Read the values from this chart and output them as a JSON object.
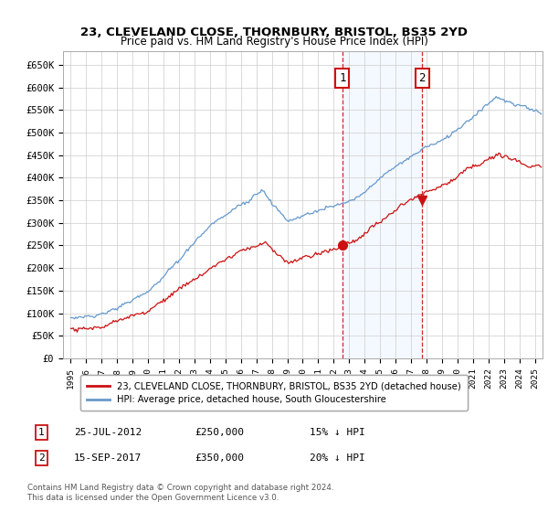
{
  "title1": "23, CLEVELAND CLOSE, THORNBURY, BRISTOL, BS35 2YD",
  "title2": "Price paid vs. HM Land Registry's House Price Index (HPI)",
  "legend1": "23, CLEVELAND CLOSE, THORNBURY, BRISTOL, BS35 2YD (detached house)",
  "legend2": "HPI: Average price, detached house, South Gloucestershire",
  "sale1_date": "25-JUL-2012",
  "sale1_price": 250000,
  "sale1_label": "15% ↓ HPI",
  "sale1_year": 2012.56,
  "sale2_date": "15-SEP-2017",
  "sale2_price": 350000,
  "sale2_label": "20% ↓ HPI",
  "sale2_year": 2017.71,
  "note": "Contains HM Land Registry data © Crown copyright and database right 2024.\nThis data is licensed under the Open Government Licence v3.0.",
  "blue_color": "#6699cc",
  "red_color": "#cc1111",
  "shade_color": "#ddeeff",
  "grid_color": "#cccccc",
  "bg_color": "#ffffff",
  "ylim": [
    0,
    680000
  ],
  "yticks": [
    0,
    50000,
    100000,
    150000,
    200000,
    250000,
    300000,
    350000,
    400000,
    450000,
    500000,
    550000,
    600000,
    650000
  ],
  "xlim_start": 1994.5,
  "xlim_end": 2025.5
}
